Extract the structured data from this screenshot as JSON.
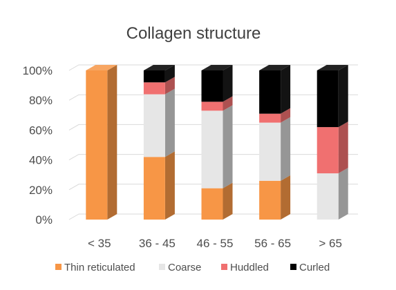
{
  "chart_data": {
    "type": "bar",
    "stacked": true,
    "percent": true,
    "style": "3d-column",
    "title": "Collagen structure",
    "xlabel": "",
    "ylabel": "",
    "categories": [
      "< 35",
      "36 - 45",
      "46 - 55",
      "56 - 65",
      "> 65"
    ],
    "series": [
      {
        "name": "Thin reticulated",
        "color": "#F79646",
        "values": [
          100,
          42,
          21,
          26,
          0
        ]
      },
      {
        "name": "Coarse",
        "color": "#E6E6E6",
        "values": [
          0,
          42,
          52,
          39,
          31
        ]
      },
      {
        "name": "Huddled",
        "color": "#F07070",
        "values": [
          0,
          8,
          6,
          6,
          31
        ]
      },
      {
        "name": "Curled",
        "color": "#000000",
        "values": [
          0,
          8,
          21,
          29,
          38
        ]
      }
    ],
    "ylim": [
      0,
      100
    ],
    "yticks": [
      "0%",
      "20%",
      "40%",
      "60%",
      "80%",
      "100%"
    ],
    "grid": true,
    "legend_position": "bottom"
  }
}
